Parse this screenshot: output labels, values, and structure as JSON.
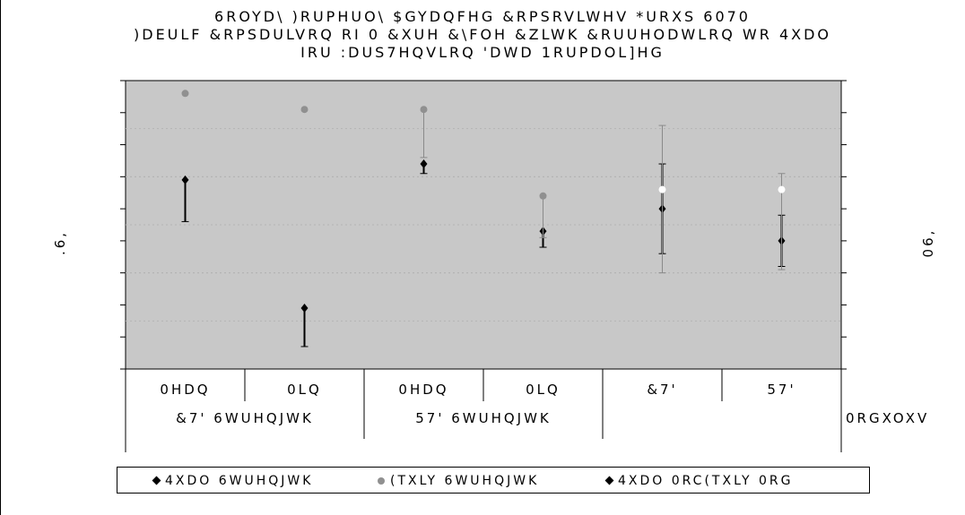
{
  "chart_data": {
    "type": "scatter",
    "title_lines": [
      "6ROYD\\  )RUPHUO\\ $GYDQFHG &RPSRVLWHV *URXS 6070",
      ")DEULF  &RPSDULVRQ RI 0 &XUH &\\FOH &ZLWK &RUUHODWLRQ WR 4XDO",
      "IRU :DUS7HQVLRQ 'DWD 1RUPDOL]HG"
    ],
    "ylabel_left": ".6,",
    "ylabel_right": "06,",
    "categories": [
      {
        "label": "0HDQ",
        "group": "&7' 6WUHQJWK"
      },
      {
        "label": "0LQ",
        "group": "&7' 6WUHQJWK"
      },
      {
        "label": "0HDQ",
        "group": "57' 6WUHQJWK"
      },
      {
        "label": "0LQ",
        "group": "57' 6WUHQJWK"
      },
      {
        "label": "&7'",
        "group": "57' 0RGXOXV"
      },
      {
        "label": "57'",
        "group": "57' 0RGXOXV"
      }
    ],
    "groups": [
      "&7' 6WUHQJWK",
      "57' 6WUHQJWK",
      "0RGXOXV"
    ],
    "group_label_shown": [
      "&7' 6WUHQJWK",
      "57' 6WUHQJWK",
      "0RGXOXV"
    ],
    "ylim": [
      0,
      9
    ],
    "series": [
      {
        "name": "4XDO 6WUHQJWK",
        "marker": "diamond",
        "color": "#000000",
        "values": [
          5.9,
          1.9,
          6.4,
          4.3,
          5.0,
          4.0
        ],
        "err_low": [
          1.3,
          1.2,
          0.3,
          0.5,
          1.4,
          0.8
        ],
        "err_high": [
          0.0,
          0.0,
          0.0,
          0.0,
          1.4,
          0.8
        ]
      },
      {
        "name": "(TXLY 6WUHQJWK",
        "marker": "circle",
        "color": "#909090",
        "values": [
          8.6,
          8.1,
          8.1,
          5.4,
          5.6,
          5.6
        ],
        "err_low": [
          0.0,
          0.0,
          1.5,
          1.3,
          2.6,
          2.5
        ],
        "err_high": [
          0.0,
          0.0,
          0.0,
          0.0,
          2.0,
          0.5
        ]
      }
    ],
    "legend": [
      {
        "label": "4XDO  6WUHQJWK",
        "marker": "diamond"
      },
      {
        "label": "(TXLY 6WUHQJWK",
        "marker": "circle"
      },
      {
        "label": "4XDO  0RC(TXLY 0RG",
        "marker": "diamond"
      }
    ],
    "grid": true,
    "plot_background": "#c8c8c8"
  }
}
